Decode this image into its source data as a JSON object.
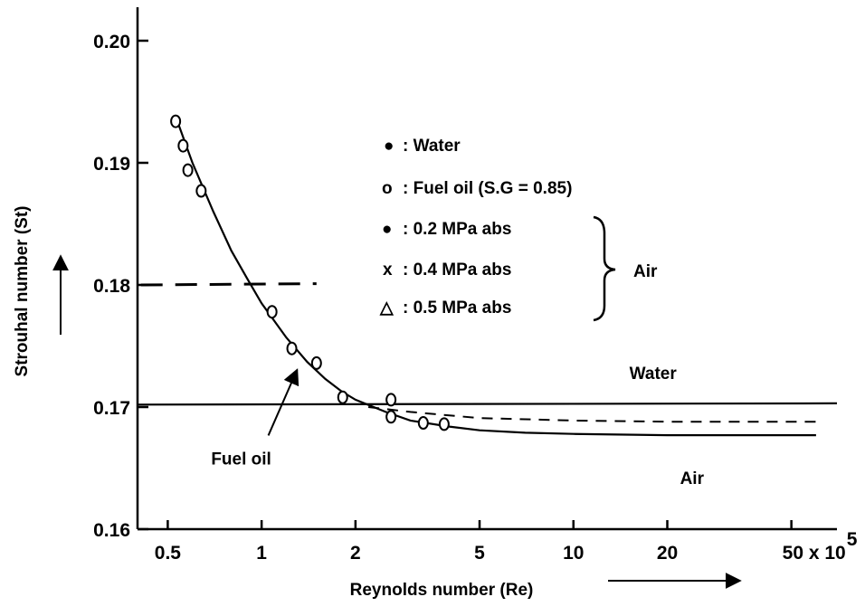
{
  "chart_data": {
    "type": "scatter",
    "title": "",
    "xlabel": "Reynolds number (Re)",
    "ylabel": "Strouhal number (St)",
    "x_scale": "log",
    "xlim": [
      0.4,
      70
    ],
    "ylim": [
      0.16,
      0.2
    ],
    "x_ticks": [
      {
        "value": 0.5,
        "label": "0.5"
      },
      {
        "value": 1,
        "label": "1"
      },
      {
        "value": 2,
        "label": "2"
      },
      {
        "value": 5,
        "label": "5"
      },
      {
        "value": 10,
        "label": "10"
      },
      {
        "value": 20,
        "label": "20"
      },
      {
        "value": 50,
        "label": "50 x 10",
        "superscript": "5"
      }
    ],
    "y_ticks": [
      {
        "value": 0.16,
        "label": "0.16"
      },
      {
        "value": 0.17,
        "label": "0.17"
      },
      {
        "value": 0.18,
        "label": "0.18"
      },
      {
        "value": 0.19,
        "label": "0.19"
      },
      {
        "value": 0.2,
        "label": "0.20"
      }
    ],
    "legend": {
      "placement": "top-right",
      "entries": [
        {
          "marker": "filled-dot",
          "symbol": "●",
          "text": ": Water"
        },
        {
          "marker": "open-circle",
          "symbol": "o",
          "text": ": Fuel oil (S.G = 0.85)"
        },
        {
          "marker": "dotted-circle",
          "symbol": "●",
          "text": ": 0.2 MPa  abs"
        },
        {
          "marker": "cross",
          "symbol": "x",
          "text": ": 0.4 MPa  abs"
        },
        {
          "marker": "triangle",
          "symbol": "△",
          "text": ": 0.5 MPa  abs"
        }
      ],
      "group_label": "Air"
    },
    "series": [
      {
        "marker": "open-circle",
        "points": [
          {
            "x": 0.53,
            "y": 0.1934
          },
          {
            "x": 0.56,
            "y": 0.1914
          },
          {
            "x": 0.58,
            "y": 0.1894
          },
          {
            "x": 0.64,
            "y": 0.1877
          },
          {
            "x": 1.08,
            "y": 0.1778
          },
          {
            "x": 1.25,
            "y": 0.1748
          },
          {
            "x": 1.5,
            "y": 0.1736
          },
          {
            "x": 1.82,
            "y": 0.1708
          },
          {
            "x": 2.6,
            "y": 0.1706
          },
          {
            "x": 2.6,
            "y": 0.1692
          },
          {
            "x": 3.3,
            "y": 0.1687
          },
          {
            "x": 3.85,
            "y": 0.1686
          }
        ]
      }
    ],
    "lines": [
      {
        "style": "solid",
        "label": "Fuel oil",
        "points": [
          [
            0.53,
            0.1938
          ],
          [
            0.6,
            0.19
          ],
          [
            0.7,
            0.186
          ],
          [
            0.8,
            0.1828
          ],
          [
            0.9,
            0.1805
          ],
          [
            1.0,
            0.1785
          ],
          [
            1.2,
            0.1757
          ],
          [
            1.4,
            0.1737
          ],
          [
            1.6,
            0.1723
          ],
          [
            1.8,
            0.1713
          ],
          [
            2.0,
            0.1706
          ],
          [
            2.5,
            0.1696
          ],
          [
            3.0,
            0.1689
          ],
          [
            4.0,
            0.1684
          ],
          [
            5.0,
            0.1681
          ],
          [
            7.0,
            0.1679
          ],
          [
            10.0,
            0.1678
          ],
          [
            20.0,
            0.1677
          ],
          [
            60.0,
            0.1677
          ]
        ]
      },
      {
        "style": "solid",
        "label": "Water",
        "points": [
          [
            0.4,
            0.1702
          ],
          [
            70,
            0.1703
          ]
        ]
      },
      {
        "style": "dashed",
        "points": [
          [
            0.41,
            0.18
          ],
          [
            1.5,
            0.1801
          ]
        ]
      },
      {
        "style": "dashed",
        "label": "Air",
        "points": [
          [
            2.2,
            0.17
          ],
          [
            3.0,
            0.1696
          ],
          [
            5.0,
            0.1691
          ],
          [
            10.0,
            0.1689
          ],
          [
            20.0,
            0.1688
          ],
          [
            60.0,
            0.1688
          ]
        ]
      }
    ],
    "annotations": [
      {
        "text": "Water",
        "x": 18,
        "y": 0.1723
      },
      {
        "text": "Air",
        "x": 24,
        "y": 0.1637
      },
      {
        "text": "Fuel oil",
        "x": 0.86,
        "y": 0.1653,
        "arrow_to": [
          1.3,
          0.1735
        ]
      }
    ],
    "grid": false
  }
}
